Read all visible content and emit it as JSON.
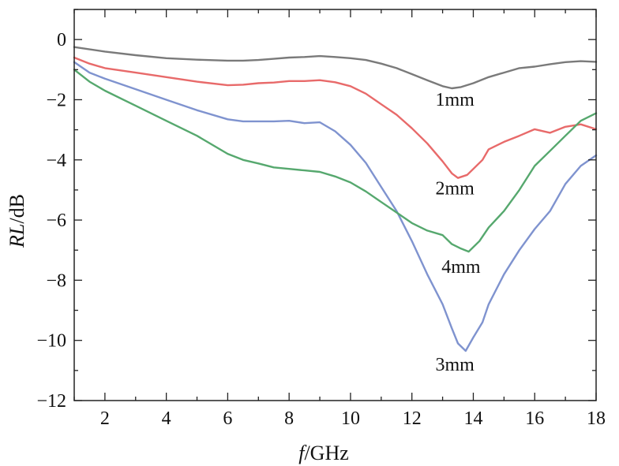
{
  "chart_data": {
    "type": "line",
    "xlabel_italic": "f",
    "xlabel_rest": "/GHz",
    "ylabel_italic": "RL",
    "ylabel_rest": "/dB",
    "xlim": [
      1,
      18
    ],
    "ylim": [
      -12,
      1
    ],
    "xticks": [
      2,
      4,
      6,
      8,
      10,
      12,
      14,
      16,
      18
    ],
    "yticks": [
      0,
      -2,
      -4,
      -6,
      -8,
      -10,
      -12
    ],
    "grid": false,
    "series": [
      {
        "name": "1mm",
        "color": "#7a7a7a",
        "x": [
          1,
          2,
          3,
          4,
          5,
          6,
          6.5,
          7,
          7.5,
          8,
          8.5,
          9,
          9.5,
          10,
          10.5,
          11,
          11.5,
          12,
          12.5,
          13,
          13.3,
          13.6,
          14,
          14.5,
          15,
          15.5,
          16,
          16.5,
          17,
          17.5,
          18
        ],
        "y": [
          -0.25,
          -0.4,
          -0.52,
          -0.62,
          -0.67,
          -0.7,
          -0.7,
          -0.68,
          -0.64,
          -0.6,
          -0.58,
          -0.55,
          -0.58,
          -0.62,
          -0.68,
          -0.8,
          -0.95,
          -1.15,
          -1.35,
          -1.55,
          -1.62,
          -1.58,
          -1.45,
          -1.25,
          -1.1,
          -0.95,
          -0.9,
          -0.82,
          -0.75,
          -0.72,
          -0.74
        ]
      },
      {
        "name": "2mm",
        "color": "#e86a6a",
        "x": [
          1,
          1.5,
          2,
          3,
          4,
          5,
          6,
          6.5,
          7,
          7.5,
          8,
          8.5,
          9,
          9.5,
          10,
          10.5,
          11,
          11.5,
          12,
          12.5,
          13,
          13.3,
          13.5,
          13.8,
          14,
          14.3,
          14.5,
          15,
          15.5,
          16,
          16.5,
          17,
          17.5,
          18
        ],
        "y": [
          -0.6,
          -0.8,
          -0.95,
          -1.1,
          -1.25,
          -1.4,
          -1.52,
          -1.5,
          -1.45,
          -1.43,
          -1.38,
          -1.38,
          -1.35,
          -1.42,
          -1.55,
          -1.8,
          -2.15,
          -2.5,
          -2.95,
          -3.45,
          -4.05,
          -4.45,
          -4.6,
          -4.5,
          -4.3,
          -4.0,
          -3.65,
          -3.4,
          -3.2,
          -2.98,
          -3.1,
          -2.9,
          -2.82,
          -2.98
        ]
      },
      {
        "name": "3mm",
        "color": "#7f93cf",
        "x": [
          1,
          1.5,
          2,
          3,
          4,
          5,
          6,
          6.5,
          7,
          7.5,
          8,
          8.5,
          9,
          9.5,
          10,
          10.5,
          11,
          11.5,
          12,
          12.5,
          13,
          13.3,
          13.5,
          13.75,
          14,
          14.3,
          14.5,
          15,
          15.5,
          16,
          16.5,
          17,
          17.5,
          18
        ],
        "y": [
          -0.75,
          -1.1,
          -1.3,
          -1.65,
          -2.0,
          -2.35,
          -2.65,
          -2.72,
          -2.72,
          -2.72,
          -2.7,
          -2.78,
          -2.75,
          -3.05,
          -3.5,
          -4.1,
          -4.9,
          -5.7,
          -6.7,
          -7.8,
          -8.8,
          -9.6,
          -10.1,
          -10.35,
          -9.9,
          -9.4,
          -8.8,
          -7.8,
          -7.0,
          -6.3,
          -5.7,
          -4.8,
          -4.2,
          -3.85
        ]
      },
      {
        "name": "4mm",
        "color": "#56a86e",
        "x": [
          1,
          1.5,
          2,
          3,
          4,
          5,
          6,
          6.5,
          7,
          7.5,
          8,
          8.5,
          9,
          9.5,
          10,
          10.5,
          11,
          11.5,
          12,
          12.5,
          13,
          13.3,
          13.6,
          13.85,
          14.2,
          14.5,
          15,
          15.5,
          16,
          16.5,
          17,
          17.5,
          18
        ],
        "y": [
          -1.0,
          -1.4,
          -1.7,
          -2.2,
          -2.7,
          -3.2,
          -3.8,
          -4.0,
          -4.12,
          -4.25,
          -4.3,
          -4.35,
          -4.4,
          -4.55,
          -4.75,
          -5.05,
          -5.4,
          -5.75,
          -6.1,
          -6.35,
          -6.5,
          -6.8,
          -6.95,
          -7.05,
          -6.7,
          -6.25,
          -5.7,
          -5.0,
          -4.2,
          -3.7,
          -3.2,
          -2.7,
          -2.45
        ]
      }
    ]
  },
  "curve_labels": [
    {
      "text": "1mm",
      "x": 13.4,
      "y": -2.2
    },
    {
      "text": "2mm",
      "x": 13.4,
      "y": -5.15
    },
    {
      "text": "4mm",
      "x": 13.6,
      "y": -7.75
    },
    {
      "text": "3mm",
      "x": 13.4,
      "y": -11.0
    }
  ]
}
